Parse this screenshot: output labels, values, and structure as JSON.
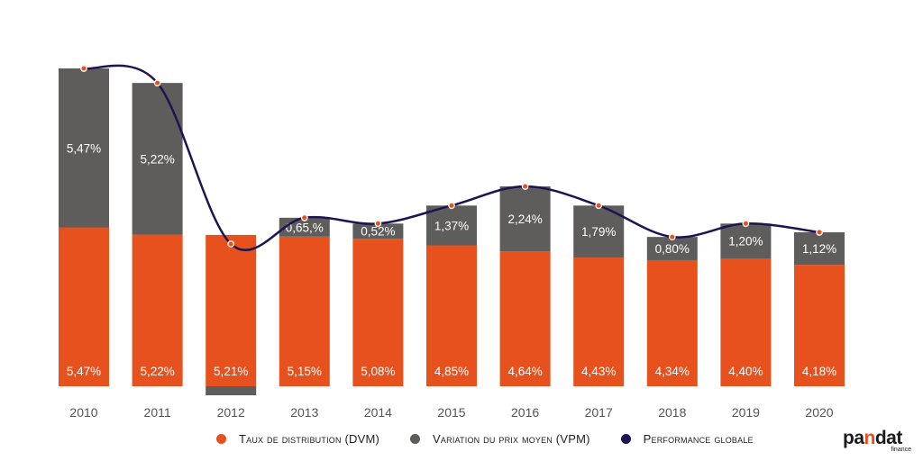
{
  "chart_data": {
    "type": "bar",
    "stacked": true,
    "categories": [
      "2010",
      "2011",
      "2012",
      "2013",
      "2014",
      "2015",
      "2016",
      "2017",
      "2018",
      "2019",
      "2020"
    ],
    "series": [
      {
        "name": "Taux de distribution (DVM)",
        "color": "#e6511e",
        "values": [
          5.47,
          5.22,
          5.21,
          5.15,
          5.08,
          4.85,
          4.64,
          4.43,
          4.34,
          4.4,
          4.18
        ],
        "labels": [
          "5,47%",
          "5,22%",
          "5,21%",
          "5,15%",
          "5,08%",
          "4,85%",
          "4,64%",
          "4,43%",
          "4,34%",
          "4,40%",
          "4,18%"
        ]
      },
      {
        "name": "Variation du prix moyen (VPM)",
        "color": "#5f5d5b",
        "values": [
          5.47,
          5.22,
          -0.31,
          0.65,
          0.52,
          1.37,
          2.24,
          1.79,
          0.8,
          1.2,
          1.12
        ],
        "labels": [
          "5,47%",
          "5,22%",
          "",
          "0,65,%",
          "0,52%",
          "1,37%",
          "2,24%",
          "1,79%",
          "0,80%",
          "1,20%",
          "1,12%"
        ]
      },
      {
        "name": "Performance globale",
        "color": "#1e1452",
        "type": "line",
        "values": [
          10.94,
          10.44,
          4.9,
          5.8,
          5.6,
          6.22,
          6.88,
          6.22,
          5.14,
          5.6,
          5.3
        ]
      }
    ],
    "ylim": [
      0,
      11.6
    ],
    "legend": "bottom",
    "grid": false,
    "title": "",
    "xlabel": "",
    "ylabel": ""
  },
  "logo": {
    "brand_left": "pa",
    "brand_accent": "n",
    "brand_right": "dat",
    "sub": "finance"
  }
}
